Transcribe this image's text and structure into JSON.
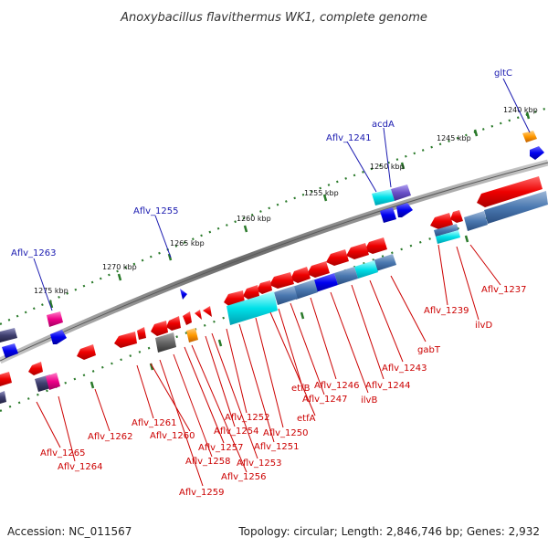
{
  "title": "Anoxybacillus flavithermus WK1, complete genome",
  "footer": {
    "accession": "Accession: NC_011567",
    "topology": "Topology: circular; Length: 2,846,746 bp; Genes: 2,932"
  },
  "ticks": [
    "1240 kbp",
    "1245 kbp",
    "1250 kbp",
    "1255 kbp",
    "1260 kbp",
    "1265 kbp",
    "1270 kbp",
    "1275 kbp"
  ],
  "top_labels": [
    "gltC",
    "acdA",
    "Aflv_1241",
    "Aflv_1255",
    "Aflv_1263"
  ],
  "bottom_labels": [
    "Aflv_1237",
    "Aflv_1239",
    "ilvD",
    "gabT",
    "Aflv_1243",
    "Aflv_1244",
    "ilvB",
    "Aflv_1246",
    "Aflv_1247",
    "etfB",
    "etfA",
    "Aflv_1250",
    "Aflv_1251",
    "Aflv_1252",
    "Aflv_1253",
    "Aflv_1254",
    "Aflv_1256",
    "Aflv_1257",
    "Aflv_1258",
    "Aflv_1259",
    "Aflv_1260",
    "Aflv_1261",
    "Aflv_1262",
    "Aflv_1264",
    "Aflv_1265"
  ],
  "colors": {
    "backbone": "#7a7a7a",
    "forward_gene": "#ee0000",
    "reverse_gene": "#ee0000",
    "rna": "#00e0e8",
    "blue_gene": "#0000ee",
    "orange_gene": "#ff9900",
    "magenta_gene": "#ee0088",
    "grey_gene": "#666666",
    "tick_dots": "#2a7a2a",
    "label_blue": "#1a1ab0",
    "label_red": "#cc0000"
  }
}
